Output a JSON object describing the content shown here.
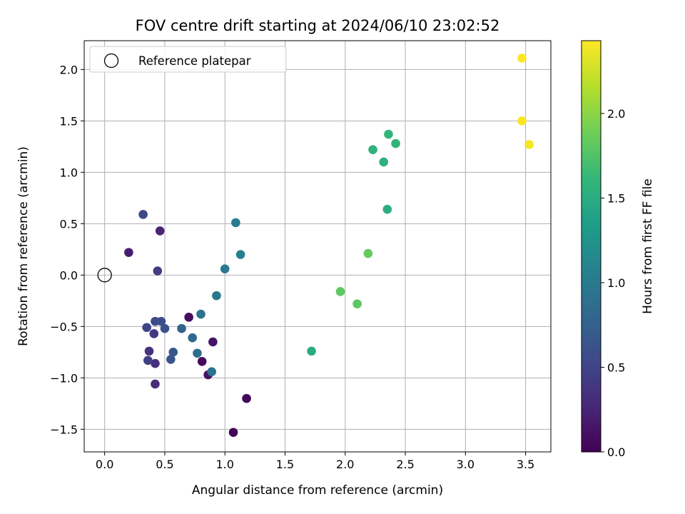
{
  "chart_data": {
    "type": "scatter",
    "title": "FOV centre drift starting at 2024/06/10 23:02:52",
    "xlabel": "Angular distance from reference (arcmin)",
    "ylabel": "Rotation from reference (arcmin)",
    "xlim": [
      -0.17,
      3.71
    ],
    "ylim": [
      -1.72,
      2.28
    ],
    "xticks": [
      0.0,
      0.5,
      1.0,
      1.5,
      2.0,
      2.5,
      3.0,
      3.5
    ],
    "xtick_labels": [
      "0.0",
      "0.5",
      "1.0",
      "1.5",
      "2.0",
      "2.5",
      "3.0",
      "3.5"
    ],
    "yticks": [
      -1.5,
      -1.0,
      -0.5,
      0.0,
      0.5,
      1.0,
      1.5,
      2.0
    ],
    "ytick_labels": [
      "−1.5",
      "−1.0",
      "−0.5",
      "0.0",
      "0.5",
      "1.0",
      "1.5",
      "2.0"
    ],
    "grid": true,
    "legend": {
      "placement": "top-left",
      "entries": [
        "Reference platepar"
      ]
    },
    "reference_point": {
      "x": 0.0,
      "y": 0.0
    },
    "colorbar": {
      "label": "Hours from first FF file",
      "colormap": "viridis",
      "range": [
        0.0,
        2.43
      ],
      "ticks": [
        0.0,
        0.5,
        1.0,
        1.5,
        2.0
      ],
      "tick_labels": [
        "0.0",
        "0.5",
        "1.0",
        "1.5",
        "2.0"
      ],
      "colormap_stops": [
        "#440154",
        "#482878",
        "#3e4989",
        "#31688e",
        "#26828e",
        "#1f9e89",
        "#35b779",
        "#6ece58",
        "#b5de2b",
        "#fde725"
      ]
    },
    "points": [
      {
        "x": 1.07,
        "y": -1.53,
        "t": 0.02
      },
      {
        "x": 1.18,
        "y": -1.2,
        "t": 0.04
      },
      {
        "x": 0.81,
        "y": -0.84,
        "t": 0.06
      },
      {
        "x": 0.7,
        "y": -0.41,
        "t": 0.08
      },
      {
        "x": 0.86,
        "y": -0.97,
        "t": 0.11
      },
      {
        "x": 0.9,
        "y": -0.65,
        "t": 0.14
      },
      {
        "x": 0.2,
        "y": 0.22,
        "t": 0.2
      },
      {
        "x": 0.46,
        "y": 0.43,
        "t": 0.24
      },
      {
        "x": 0.42,
        "y": -1.06,
        "t": 0.3
      },
      {
        "x": 0.42,
        "y": -0.86,
        "t": 0.33
      },
      {
        "x": 0.37,
        "y": -0.74,
        "t": 0.36
      },
      {
        "x": 0.41,
        "y": -0.57,
        "t": 0.4
      },
      {
        "x": 0.44,
        "y": 0.04,
        "t": 0.44
      },
      {
        "x": 0.36,
        "y": -0.83,
        "t": 0.47
      },
      {
        "x": 0.35,
        "y": -0.51,
        "t": 0.5
      },
      {
        "x": 0.32,
        "y": 0.59,
        "t": 0.53
      },
      {
        "x": 0.42,
        "y": -0.45,
        "t": 0.56
      },
      {
        "x": 0.47,
        "y": -0.45,
        "t": 0.58
      },
      {
        "x": 0.5,
        "y": -0.52,
        "t": 0.61
      },
      {
        "x": 0.55,
        "y": -0.82,
        "t": 0.64
      },
      {
        "x": 0.57,
        "y": -0.75,
        "t": 0.67
      },
      {
        "x": 0.64,
        "y": -0.52,
        "t": 0.76
      },
      {
        "x": 0.73,
        "y": -0.61,
        "t": 0.82
      },
      {
        "x": 0.77,
        "y": -0.76,
        "t": 0.86
      },
      {
        "x": 0.8,
        "y": -0.38,
        "t": 0.9
      },
      {
        "x": 0.89,
        "y": -0.94,
        "t": 0.93
      },
      {
        "x": 0.93,
        "y": -0.2,
        "t": 0.97
      },
      {
        "x": 1.0,
        "y": 0.06,
        "t": 1.0
      },
      {
        "x": 1.09,
        "y": 0.51,
        "t": 1.03
      },
      {
        "x": 1.13,
        "y": 0.2,
        "t": 1.06
      },
      {
        "x": 1.72,
        "y": -0.74,
        "t": 1.5
      },
      {
        "x": 2.35,
        "y": 0.64,
        "t": 1.52
      },
      {
        "x": 2.32,
        "y": 1.1,
        "t": 1.55
      },
      {
        "x": 2.23,
        "y": 1.22,
        "t": 1.57
      },
      {
        "x": 2.42,
        "y": 1.28,
        "t": 1.58
      },
      {
        "x": 2.36,
        "y": 1.37,
        "t": 1.6
      },
      {
        "x": 2.1,
        "y": -0.28,
        "t": 1.8
      },
      {
        "x": 1.96,
        "y": -0.16,
        "t": 1.82
      },
      {
        "x": 2.19,
        "y": 0.21,
        "t": 1.84
      },
      {
        "x": 3.53,
        "y": 1.27,
        "t": 2.4
      },
      {
        "x": 3.47,
        "y": 1.5,
        "t": 2.41
      },
      {
        "x": 3.47,
        "y": 2.11,
        "t": 2.43
      }
    ]
  }
}
